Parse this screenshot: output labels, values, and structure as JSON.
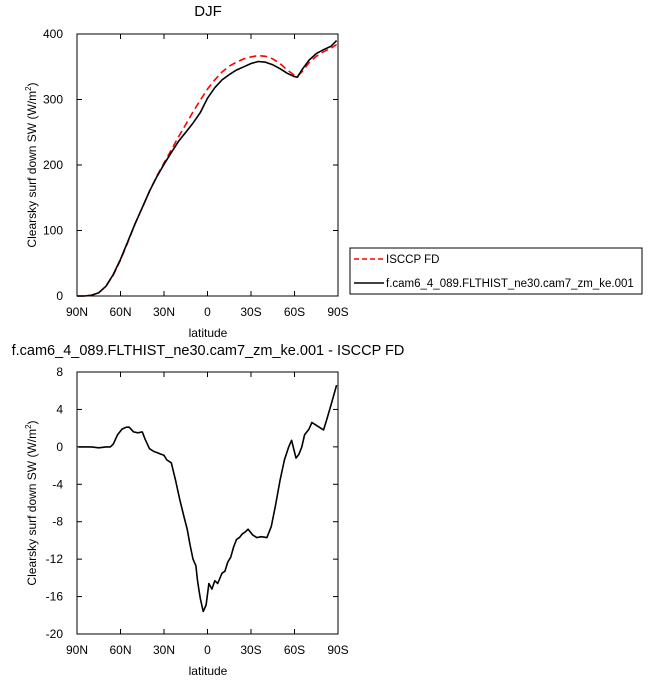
{
  "chart_data": [
    {
      "type": "line",
      "title": "DJF",
      "xlabel": "latitude",
      "ylabel": "Clearsky surf down SW (W/m",
      "ylabel_sup": "2",
      "ylabel_close": ")",
      "xlim": [
        90,
        -90
      ],
      "ylim": [
        0,
        400
      ],
      "xticks": [
        90,
        60,
        30,
        0,
        -30,
        -60,
        -90
      ],
      "xtick_labels": [
        "90N",
        "60N",
        "30N",
        "0",
        "30S",
        "60S",
        "90S"
      ],
      "yticks": [
        0,
        100,
        200,
        300,
        400
      ],
      "ytick_labels": [
        "0",
        "100",
        "200",
        "300",
        "400"
      ],
      "grid": false,
      "legend_position": "right, outside plot",
      "series": [
        {
          "name": "ISCCP FD",
          "color": "#ff0000",
          "dash": "dashed",
          "x": [
            90,
            85,
            80,
            75,
            70,
            65,
            60,
            55,
            50,
            45,
            40,
            35,
            30,
            25,
            20,
            15,
            10,
            5,
            0,
            -5,
            -10,
            -15,
            -20,
            -25,
            -30,
            -35,
            -40,
            -45,
            -50,
            -55,
            -60,
            -62,
            -65,
            -70,
            -75,
            -80,
            -85,
            -89
          ],
          "y": [
            0,
            0,
            1,
            5,
            15,
            32,
            55,
            82,
            110,
            135,
            160,
            183,
            203,
            223,
            243,
            262,
            281,
            299,
            316,
            330,
            342,
            351,
            357,
            362,
            365,
            367,
            366,
            362,
            355,
            345,
            337,
            336,
            342,
            356,
            366,
            373,
            378,
            384
          ]
        },
        {
          "name": "f.cam6_4_089.FLTHIST_ne30.cam7_zm_ke.001",
          "color": "#000000",
          "dash": "solid",
          "x": [
            90,
            85,
            80,
            75,
            70,
            65,
            60,
            55,
            50,
            45,
            40,
            35,
            30,
            25,
            20,
            15,
            10,
            5,
            0,
            -5,
            -10,
            -15,
            -20,
            -25,
            -30,
            -35,
            -40,
            -45,
            -50,
            -55,
            -60,
            -62,
            -65,
            -70,
            -75,
            -80,
            -85,
            -89
          ],
          "y": [
            0,
            0,
            1,
            5,
            15,
            33,
            56,
            83,
            110,
            135,
            160,
            182,
            201,
            219,
            236,
            250,
            264,
            280,
            302,
            318,
            330,
            338,
            345,
            350,
            355,
            358,
            357,
            353,
            347,
            340,
            335,
            334,
            345,
            360,
            370,
            376,
            381,
            390
          ]
        }
      ]
    },
    {
      "type": "line",
      "title": "f.cam6_4_089.FLTHIST_ne30.cam7_zm_ke.001 - ISCCP FD",
      "xlabel": "latitude",
      "ylabel": "Clearsky surf down SW (W/m",
      "ylabel_sup": "2",
      "ylabel_close": ")",
      "xlim": [
        90,
        -90
      ],
      "ylim": [
        -20,
        8
      ],
      "xticks": [
        90,
        60,
        30,
        0,
        -30,
        -60,
        -90
      ],
      "xtick_labels": [
        "90N",
        "60N",
        "30N",
        "0",
        "30S",
        "60S",
        "90S"
      ],
      "yticks": [
        -20,
        -16,
        -12,
        -8,
        -4,
        0,
        4,
        8
      ],
      "ytick_labels": [
        "-20",
        "-16",
        "-12",
        "-8",
        "-4",
        "0",
        "4",
        "8"
      ],
      "grid": false,
      "series": [
        {
          "color": "#000000",
          "dash": "solid",
          "x": [
            89,
            85,
            80,
            75,
            70,
            67,
            65,
            62,
            59,
            56,
            54,
            51,
            48,
            45,
            43,
            40,
            37,
            35,
            32,
            30,
            28,
            25,
            22,
            19,
            16,
            14,
            12,
            10,
            8,
            7,
            6,
            5,
            3,
            1,
            -1,
            -3,
            -5,
            -7,
            -10,
            -12,
            -14,
            -16,
            -18,
            -20,
            -22,
            -24,
            -26,
            -28,
            -31,
            -34,
            -37,
            -41,
            -44,
            -47,
            -50,
            -53,
            -56,
            -58,
            -61,
            -63,
            -65,
            -67,
            -70,
            -72,
            -75,
            -78,
            -80,
            -82,
            -85,
            -89
          ],
          "y": [
            0,
            0,
            0,
            -0.1,
            0,
            0,
            0.3,
            1.3,
            1.9,
            2.1,
            2.1,
            1.6,
            1.5,
            1.6,
            0.8,
            -0.2,
            -0.5,
            -0.6,
            -0.8,
            -0.9,
            -1.4,
            -1.7,
            -3.6,
            -5.7,
            -7.6,
            -8.8,
            -10.5,
            -12.0,
            -12.7,
            -14.2,
            -15.2,
            -16.2,
            -17.6,
            -16.9,
            -14.6,
            -15.2,
            -14.3,
            -14.6,
            -13.5,
            -13.3,
            -12.3,
            -11.8,
            -10.7,
            -9.9,
            -9.7,
            -9.3,
            -9.1,
            -8.8,
            -9.4,
            -9.7,
            -9.6,
            -9.7,
            -8.5,
            -6.2,
            -3.6,
            -1.4,
            0.0,
            0.7,
            -1.2,
            -0.8,
            0.0,
            1.3,
            1.9,
            2.6,
            2.3,
            2.0,
            1.8,
            2.8,
            4.4,
            6.6
          ]
        }
      ]
    }
  ]
}
